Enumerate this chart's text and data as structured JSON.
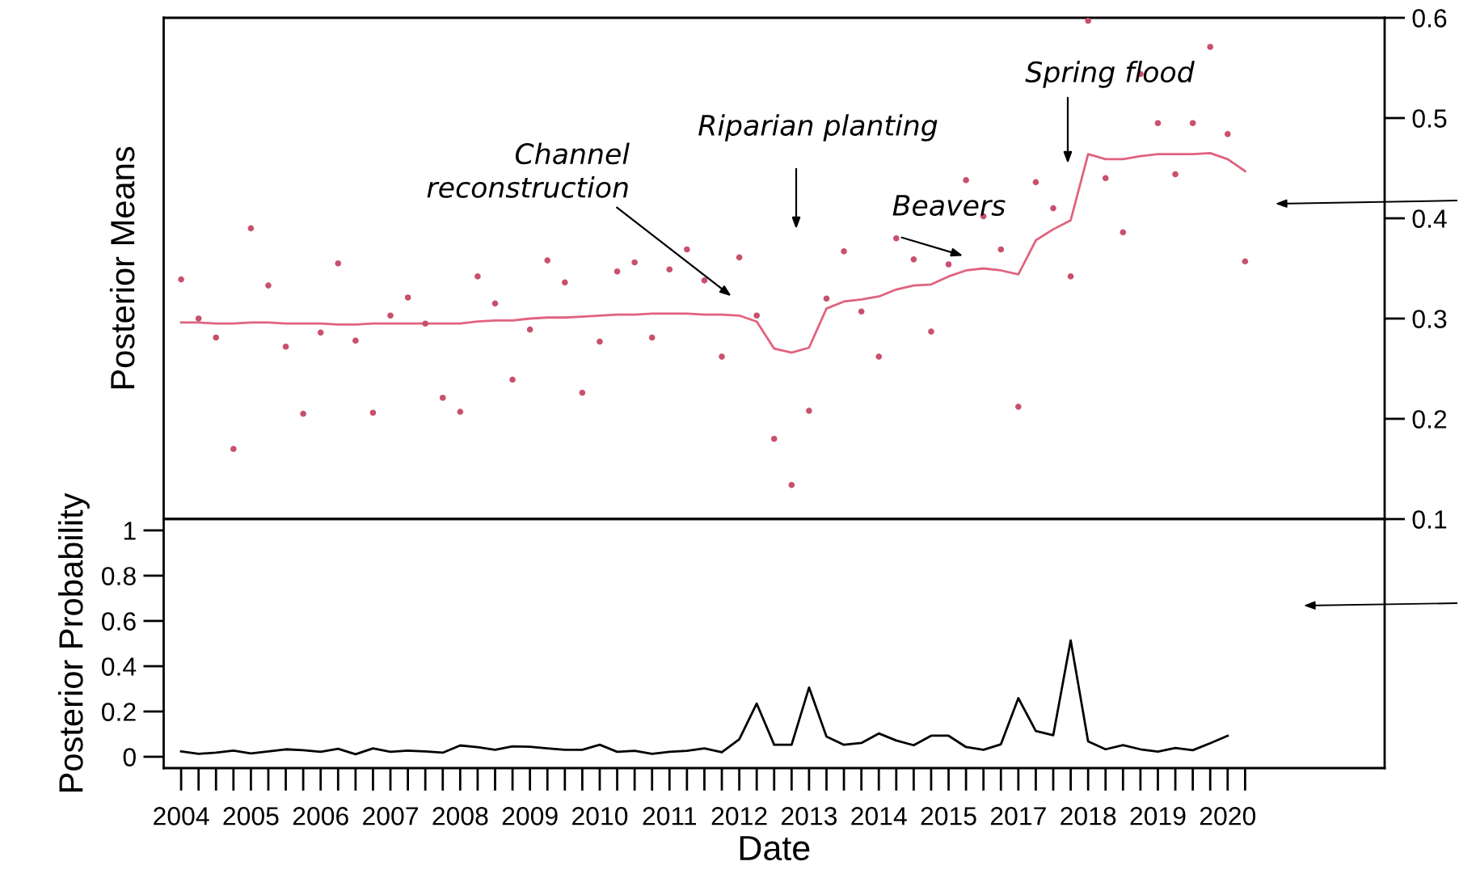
{
  "chart_data": [
    {
      "type": "scatter",
      "ylabel": "Posterior Means",
      "ylim": [
        0.1,
        0.6
      ],
      "yticks": [
        0.1,
        0.2,
        0.3,
        0.4,
        0.5,
        0.6
      ],
      "tick_labels": "y",
      "categories": [
        null,
        null,
        null,
        null,
        null,
        null,
        null,
        null,
        null,
        null,
        null,
        null,
        null,
        null,
        null,
        null,
        null,
        null,
        null,
        null,
        null,
        null,
        null,
        null,
        null,
        null,
        null,
        null,
        null,
        null,
        null,
        null,
        null,
        null,
        null,
        null,
        null,
        null,
        null,
        null,
        null,
        null,
        null,
        null,
        null,
        null,
        null,
        null,
        null,
        null,
        null,
        null,
        null,
        null,
        null,
        null,
        null,
        null,
        null,
        null,
        null,
        null
      ],
      "series": [
        {
          "type": "scatter",
          "marker": "circle",
          "color": "#c9506c",
          "values": [
            0.339,
            0.3,
            0.281,
            0.17,
            0.39,
            0.333,
            0.272,
            0.205,
            0.286,
            0.355,
            0.278,
            0.206,
            0.303,
            0.321,
            0.295,
            0.221,
            0.207,
            0.342,
            0.315,
            0.239,
            0.289,
            0.358,
            0.336,
            0.226,
            0.277,
            0.347,
            0.356,
            0.281,
            0.349,
            0.369,
            0.338,
            0.262,
            0.361,
            0.303,
            0.18,
            0.134,
            0.208,
            0.32,
            0.367,
            0.307,
            0.262,
            0.38,
            0.359,
            0.287,
            0.354,
            0.438,
            0.402,
            0.369,
            0.212,
            0.436,
            0.41,
            0.342,
            0.597,
            0.44,
            0.386,
            0.544,
            0.495,
            0.444,
            0.495,
            0.571,
            0.484,
            0.357
          ]
        },
        {
          "type": "line",
          "color": "#e0637e",
          "values": [
            0.296,
            0.296,
            0.295,
            0.295,
            0.296,
            0.296,
            0.295,
            0.295,
            0.295,
            0.294,
            0.294,
            0.295,
            0.295,
            0.295,
            0.295,
            0.295,
            0.295,
            0.297,
            0.298,
            0.298,
            0.3,
            0.301,
            0.301,
            0.302,
            0.303,
            0.304,
            0.304,
            0.305,
            0.305,
            0.305,
            0.304,
            0.304,
            0.303,
            0.297,
            0.27,
            0.266,
            0.271,
            0.31,
            0.317,
            0.319,
            0.322,
            0.329,
            0.333,
            0.334,
            0.342,
            0.348,
            0.35,
            0.348,
            0.344,
            0.378,
            0.389,
            0.398,
            0.464,
            0.459,
            0.459,
            0.462,
            0.464,
            0.464,
            0.464,
            0.465,
            0.459,
            0.447
          ]
        }
      ],
      "annotations": [
        "Channel\nreconstruction",
        "Riparian planting",
        "Beavers",
        "Spring flood"
      ]
    },
    {
      "type": "line",
      "ylabel": "Posterior Probability",
      "xlabel": "Date",
      "ylim": [
        -0.05,
        1.05
      ],
      "yticks": [
        0,
        0.2,
        0.4,
        0.6,
        0.8,
        1
      ],
      "categories": [
        "2004",
        null,
        null,
        null,
        "2005",
        null,
        null,
        null,
        "2006",
        null,
        null,
        null,
        "2007",
        null,
        null,
        null,
        "2008",
        null,
        null,
        null,
        "2009",
        null,
        null,
        null,
        "2010",
        null,
        null,
        null,
        "2011",
        null,
        null,
        null,
        "2012",
        null,
        null,
        null,
        "2013",
        null,
        null,
        null,
        "2014",
        null,
        null,
        null,
        "2015",
        null,
        null,
        null,
        "2017",
        null,
        null,
        null,
        "2018",
        null,
        null,
        null,
        "2019",
        null,
        null,
        null,
        "2020",
        null
      ],
      "series": [
        {
          "color": "#000000",
          "values": [
            0.024,
            0.013,
            0.018,
            0.027,
            0.015,
            0.024,
            0.033,
            0.029,
            0.022,
            0.035,
            0.011,
            0.037,
            0.022,
            0.027,
            0.024,
            0.018,
            0.05,
            0.042,
            0.031,
            0.046,
            0.044,
            0.037,
            0.031,
            0.031,
            0.053,
            0.022,
            0.026,
            0.013,
            0.022,
            0.026,
            0.037,
            0.02,
            0.077,
            0.235,
            0.053,
            0.053,
            0.306,
            0.089,
            0.053,
            0.061,
            0.103,
            0.072,
            0.051,
            0.093,
            0.093,
            0.043,
            0.031,
            0.055,
            0.259,
            0.114,
            0.095,
            0.514,
            0.068,
            0.033,
            0.051,
            0.033,
            0.023,
            0.039,
            0.029,
            0.06,
            0.093,
            null
          ]
        }
      ]
    }
  ]
}
